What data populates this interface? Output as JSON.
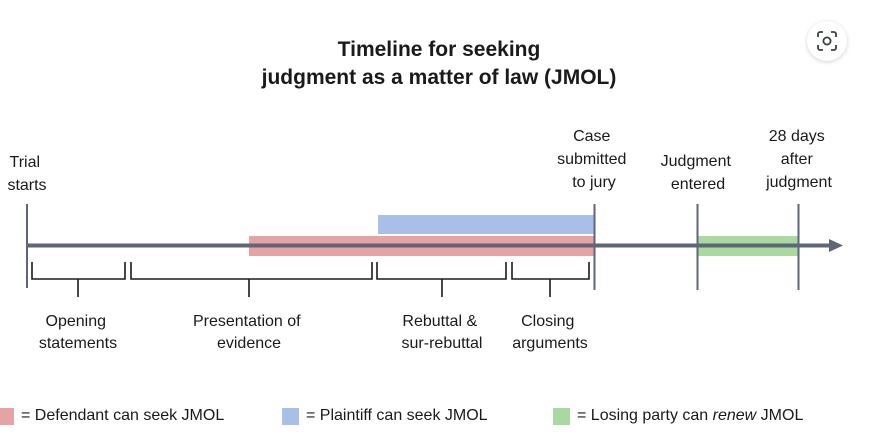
{
  "title": {
    "line1": "Timeline for seeking",
    "line2": "judgment as a matter of law (JMOL)"
  },
  "icons": {
    "lens": "lens-search-icon"
  },
  "colors": {
    "axis": "#5f6678",
    "defendant": "#e6a3a6",
    "plaintiff": "#a9bfe8",
    "renew": "#a9d9a0"
  },
  "events": {
    "trial_starts": [
      "Trial",
      "starts"
    ],
    "case_submitted": [
      "Case",
      "submitted",
      "to jury"
    ],
    "judgment_entered": [
      "Judgment",
      "entered"
    ],
    "days_after": [
      "28 days",
      "after",
      "judgment"
    ]
  },
  "phases": {
    "opening": [
      "Opening",
      "statements"
    ],
    "presentation": [
      "Presentation of",
      "evidence"
    ],
    "rebuttal": [
      "Rebuttal &",
      "sur-rebuttal"
    ],
    "closing": [
      "Closing",
      "arguments"
    ]
  },
  "legend": {
    "defendant": "= Defendant can seek JMOL",
    "plaintiff": "= Plaintiff can seek JMOL",
    "renew_prefix": "= Losing party can ",
    "renew_emph": "renew",
    "renew_suffix": " JMOL"
  }
}
